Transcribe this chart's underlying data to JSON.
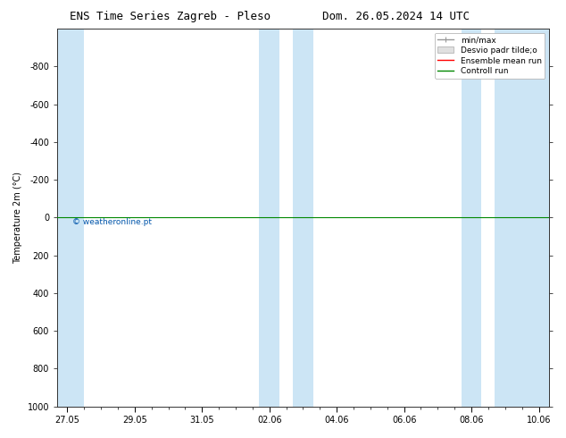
{
  "title_left": "ENS Time Series Zagreb - Pleso",
  "title_right": "Dom. 26.05.2024 14 UTC",
  "ylabel": "Temperature 2m (°C)",
  "watermark": "© weatheronline.pt",
  "watermark_color": "#0055aa",
  "bg_color": "#ffffff",
  "plot_bg_color": "#ffffff",
  "band_color": "#cce5f5",
  "ylim_bottom": 1000,
  "ylim_top": -1000,
  "yticks": [
    -800,
    -600,
    -400,
    -200,
    0,
    200,
    400,
    600,
    800,
    1000
  ],
  "xticklabels": [
    "27.05",
    "29.05",
    "31.05",
    "02.06",
    "04.06",
    "06.06",
    "08.06",
    "10.06"
  ],
  "x_num_ticks": [
    0,
    2,
    4,
    6,
    8,
    10,
    12,
    14
  ],
  "xlim": [
    -0.3,
    14.3
  ],
  "blue_bands_x": [
    [
      -0.3,
      0.5
    ],
    [
      5.7,
      6.3
    ],
    [
      6.7,
      7.3
    ],
    [
      11.7,
      12.3
    ],
    [
      12.7,
      14.3
    ]
  ],
  "green_line_y": 0,
  "red_line_y": 0,
  "legend_labels": [
    "min/max",
    "Desvio padr tilde;o",
    "Ensemble mean run",
    "Controll run"
  ],
  "legend_colors": [
    "#999999",
    "#cccccc",
    "#ff0000",
    "#008800"
  ],
  "title_fontsize": 9,
  "axis_fontsize": 7,
  "tick_fontsize": 7,
  "legend_fontsize": 6.5
}
